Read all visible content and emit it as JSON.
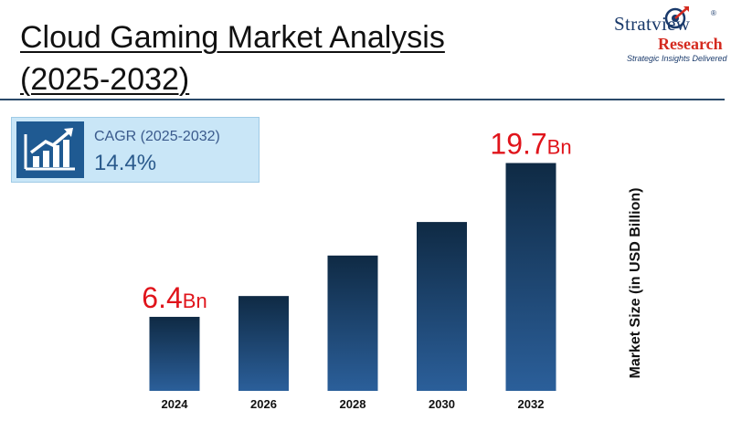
{
  "header": {
    "title_line1": "Cloud Gaming Market Analysis",
    "title_line2": "(2025-2032)"
  },
  "logo": {
    "name": "Stratview",
    "sub": "Research",
    "tagline": "Strategic Insights Delivered",
    "reg": "®"
  },
  "cagr": {
    "label": "CAGR (2025-2032)",
    "value": "14.4%",
    "icon": "growth-chart-icon"
  },
  "colors": {
    "bar_top": "#0f2a44",
    "bar_bottom": "#2b5f9a",
    "callout": "#e0141b",
    "accent": "#1f5a92"
  },
  "chart_data": {
    "type": "bar",
    "categories": [
      "2024",
      "2026",
      "2028",
      "2030",
      "2032"
    ],
    "values": [
      6.4,
      8.2,
      11.7,
      14.6,
      19.7
    ],
    "ylabel": "Market Size (in USD Billion)",
    "ylim": [
      0,
      20
    ],
    "grid": false,
    "callouts": [
      {
        "index": 0,
        "value": "6.4",
        "unit": "Bn"
      },
      {
        "index": 4,
        "value": "19.7",
        "unit": "Bn"
      }
    ]
  }
}
